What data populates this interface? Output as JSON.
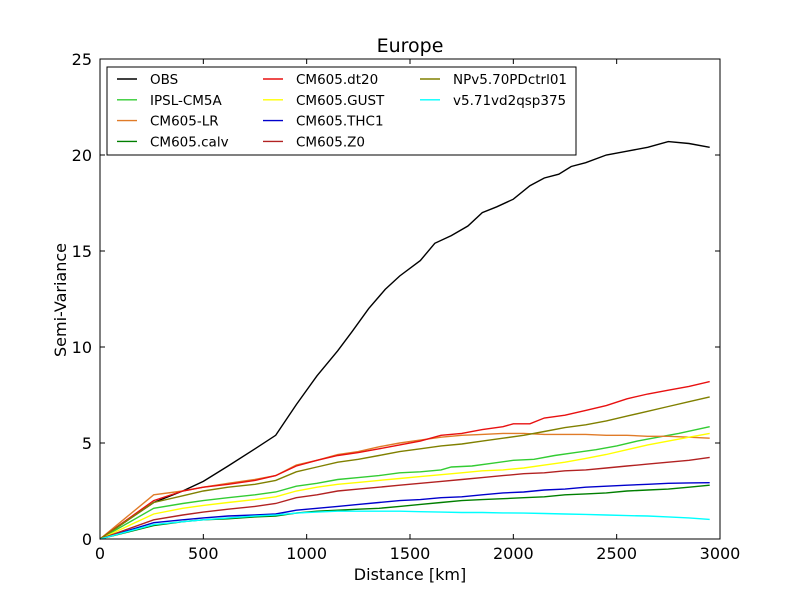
{
  "chart_data": {
    "type": "line",
    "title": "Europe",
    "xlabel": "Distance [km]",
    "ylabel": "Semi-Variance",
    "xlim": [
      0,
      3000
    ],
    "ylim": [
      0,
      25
    ],
    "xticks": [
      0,
      500,
      1000,
      1500,
      2000,
      2500,
      3000
    ],
    "yticks": [
      0,
      5,
      10,
      15,
      20,
      25
    ],
    "grid": false,
    "legend_position": "top-left",
    "legend_columns": 3,
    "series": [
      {
        "name": "OBS",
        "color": "#000000",
        "x": [
          0,
          260,
          400,
          500,
          620,
          750,
          850,
          950,
          1050,
          1150,
          1220,
          1300,
          1380,
          1450,
          1550,
          1620,
          1700,
          1780,
          1850,
          1920,
          2000,
          2080,
          2150,
          2220,
          2280,
          2350,
          2450,
          2550,
          2650,
          2750,
          2850,
          2950
        ],
        "y": [
          0,
          1.9,
          2.5,
          3.0,
          3.8,
          4.7,
          5.4,
          7.0,
          8.5,
          9.8,
          10.8,
          12.0,
          13.0,
          13.7,
          14.5,
          15.4,
          15.8,
          16.3,
          17.0,
          17.3,
          17.7,
          18.4,
          18.8,
          19.0,
          19.4,
          19.6,
          20.0,
          20.2,
          20.4,
          20.7,
          20.6,
          20.4
        ]
      },
      {
        "name": "IPSL-CM5A",
        "color": "#33cc33",
        "x": [
          0,
          260,
          400,
          500,
          620,
          750,
          850,
          950,
          1050,
          1150,
          1250,
          1350,
          1450,
          1550,
          1650,
          1700,
          1800,
          1900,
          2000,
          2100,
          2200,
          2300,
          2400,
          2500,
          2600,
          2700,
          2800,
          2950
        ],
        "y": [
          0,
          1.6,
          1.85,
          2.0,
          2.15,
          2.3,
          2.45,
          2.75,
          2.9,
          3.1,
          3.2,
          3.3,
          3.45,
          3.5,
          3.6,
          3.75,
          3.8,
          3.95,
          4.1,
          4.15,
          4.35,
          4.5,
          4.65,
          4.85,
          5.1,
          5.3,
          5.5,
          5.85
        ]
      },
      {
        "name": "CM605-LR",
        "color": "#e07b28",
        "x": [
          0,
          260,
          400,
          500,
          620,
          750,
          850,
          950,
          1050,
          1150,
          1250,
          1350,
          1450,
          1550,
          1650,
          1750,
          1850,
          1950,
          2050,
          2150,
          2250,
          2350,
          2450,
          2550,
          2650,
          2750,
          2850,
          2950
        ],
        "y": [
          0,
          2.3,
          2.5,
          2.7,
          2.9,
          3.1,
          3.3,
          3.85,
          4.1,
          4.4,
          4.55,
          4.8,
          5.0,
          5.15,
          5.3,
          5.4,
          5.45,
          5.5,
          5.5,
          5.45,
          5.45,
          5.45,
          5.4,
          5.4,
          5.35,
          5.35,
          5.3,
          5.25
        ]
      },
      {
        "name": "CM605.calv",
        "color": "#007f00",
        "x": [
          0,
          260,
          400,
          500,
          620,
          750,
          850,
          950,
          1050,
          1150,
          1250,
          1350,
          1450,
          1550,
          1650,
          1750,
          1850,
          1950,
          2050,
          2150,
          2250,
          2350,
          2450,
          2550,
          2650,
          2750,
          2850,
          2950
        ],
        "y": [
          0,
          0.7,
          0.9,
          1.0,
          1.05,
          1.15,
          1.2,
          1.35,
          1.45,
          1.5,
          1.55,
          1.6,
          1.7,
          1.8,
          1.9,
          2.0,
          2.05,
          2.1,
          2.15,
          2.2,
          2.3,
          2.35,
          2.4,
          2.5,
          2.55,
          2.6,
          2.7,
          2.8
        ]
      },
      {
        "name": "CM605.dt20",
        "color": "#e81010",
        "x": [
          0,
          260,
          400,
          500,
          620,
          750,
          850,
          950,
          1050,
          1150,
          1250,
          1350,
          1450,
          1550,
          1650,
          1750,
          1850,
          1950,
          2000,
          2080,
          2150,
          2250,
          2350,
          2450,
          2550,
          2650,
          2750,
          2850,
          2950
        ],
        "y": [
          0,
          2.0,
          2.5,
          2.7,
          2.85,
          3.05,
          3.3,
          3.8,
          4.1,
          4.35,
          4.5,
          4.7,
          4.9,
          5.1,
          5.4,
          5.5,
          5.7,
          5.85,
          6.0,
          6.0,
          6.3,
          6.45,
          6.7,
          6.95,
          7.3,
          7.55,
          7.75,
          7.95,
          8.2
        ]
      },
      {
        "name": "CM605.GUST",
        "color": "#ffff00",
        "x": [
          0,
          260,
          400,
          500,
          620,
          750,
          850,
          950,
          1050,
          1150,
          1250,
          1350,
          1450,
          1550,
          1650,
          1750,
          1850,
          1950,
          2050,
          2150,
          2250,
          2350,
          2450,
          2550,
          2650,
          2750,
          2850,
          2950
        ],
        "y": [
          0,
          1.3,
          1.6,
          1.75,
          1.9,
          2.05,
          2.2,
          2.5,
          2.7,
          2.85,
          2.95,
          3.05,
          3.15,
          3.25,
          3.35,
          3.45,
          3.55,
          3.6,
          3.7,
          3.85,
          4.0,
          4.2,
          4.4,
          4.65,
          4.9,
          5.1,
          5.3,
          5.5
        ]
      },
      {
        "name": "CM605.THC1",
        "color": "#0000cc",
        "x": [
          0,
          260,
          400,
          500,
          620,
          750,
          850,
          950,
          1050,
          1150,
          1250,
          1350,
          1450,
          1550,
          1650,
          1750,
          1850,
          1950,
          2050,
          2150,
          2250,
          2350,
          2450,
          2550,
          2650,
          2750,
          2850,
          2950
        ],
        "y": [
          0,
          0.85,
          1.0,
          1.1,
          1.2,
          1.25,
          1.3,
          1.5,
          1.6,
          1.7,
          1.8,
          1.9,
          2.0,
          2.05,
          2.15,
          2.2,
          2.3,
          2.4,
          2.45,
          2.55,
          2.6,
          2.7,
          2.75,
          2.8,
          2.85,
          2.9,
          2.92,
          2.93
        ]
      },
      {
        "name": "CM605.Z0",
        "color": "#b22222",
        "x": [
          0,
          260,
          400,
          500,
          620,
          750,
          850,
          950,
          1050,
          1150,
          1250,
          1350,
          1450,
          1550,
          1650,
          1750,
          1850,
          1950,
          2050,
          2150,
          2250,
          2350,
          2450,
          2550,
          2650,
          2750,
          2850,
          2950
        ],
        "y": [
          0,
          1.0,
          1.25,
          1.4,
          1.55,
          1.7,
          1.85,
          2.15,
          2.3,
          2.5,
          2.6,
          2.7,
          2.8,
          2.9,
          3.0,
          3.1,
          3.2,
          3.3,
          3.4,
          3.45,
          3.55,
          3.6,
          3.7,
          3.8,
          3.9,
          4.0,
          4.1,
          4.25
        ]
      },
      {
        "name": "NPv5.70PDctrl01",
        "color": "#808000",
        "x": [
          0,
          260,
          400,
          500,
          620,
          750,
          850,
          950,
          1050,
          1150,
          1250,
          1350,
          1450,
          1550,
          1650,
          1750,
          1850,
          1950,
          2050,
          2150,
          2250,
          2350,
          2450,
          2550,
          2650,
          2750,
          2850,
          2950
        ],
        "y": [
          0,
          1.9,
          2.25,
          2.5,
          2.7,
          2.85,
          3.05,
          3.5,
          3.75,
          4.0,
          4.15,
          4.35,
          4.55,
          4.7,
          4.85,
          4.95,
          5.1,
          5.25,
          5.4,
          5.6,
          5.8,
          5.95,
          6.15,
          6.4,
          6.65,
          6.9,
          7.15,
          7.4
        ]
      },
      {
        "name": "v5.71vd2qsp375",
        "color": "#00ffff",
        "x": [
          0,
          260,
          400,
          500,
          620,
          750,
          850,
          950,
          1050,
          1150,
          1250,
          1350,
          1450,
          1550,
          1650,
          1750,
          1850,
          1950,
          2050,
          2150,
          2250,
          2350,
          2450,
          2550,
          2650,
          2750,
          2850,
          2950
        ],
        "y": [
          0,
          0.75,
          0.9,
          1.0,
          1.1,
          1.2,
          1.25,
          1.35,
          1.4,
          1.45,
          1.45,
          1.45,
          1.45,
          1.42,
          1.4,
          1.38,
          1.38,
          1.36,
          1.35,
          1.33,
          1.3,
          1.28,
          1.25,
          1.22,
          1.2,
          1.15,
          1.1,
          1.02
        ]
      }
    ]
  }
}
